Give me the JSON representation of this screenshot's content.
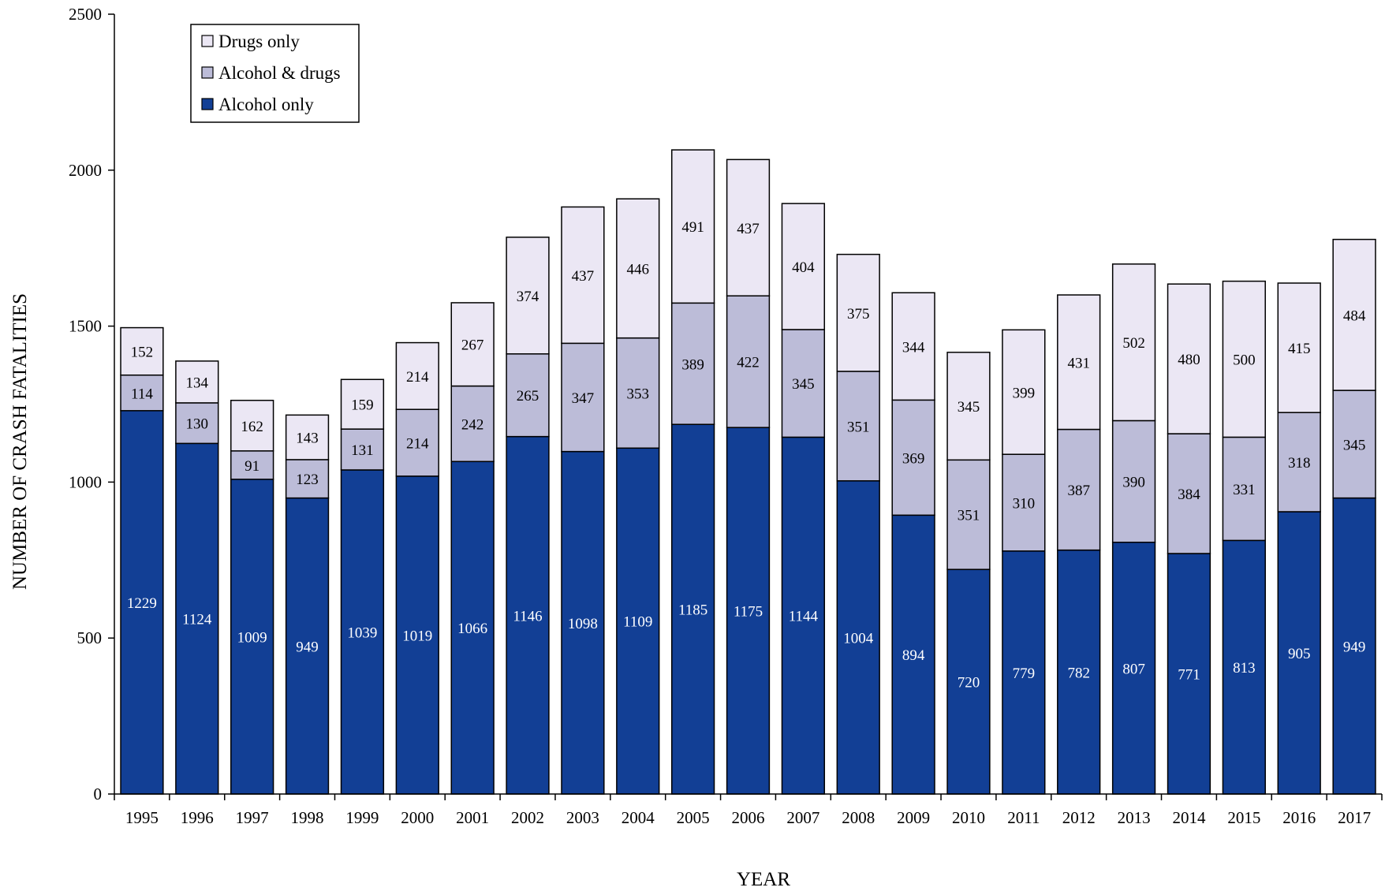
{
  "chart_data": {
    "type": "bar",
    "stacked": true,
    "xlabel": "YEAR",
    "ylabel": "NUMBER OF CRASH FATALITIES",
    "ylim": [
      0,
      2500
    ],
    "yticks": [
      "0",
      "500",
      "1000",
      "1500",
      "2000",
      "2500"
    ],
    "categories": [
      "1995",
      "1996",
      "1997",
      "1998",
      "1999",
      "2000",
      "2001",
      "2002",
      "2003",
      "2004",
      "2005",
      "2006",
      "2007",
      "2008",
      "2009",
      "2010",
      "2011",
      "2012",
      "2013",
      "2014",
      "2015",
      "2016",
      "2017"
    ],
    "series": [
      {
        "name": "Alcohol only",
        "color": "#123f95",
        "label_color": "#ffffff",
        "values": [
          1229,
          1124,
          1009,
          949,
          1039,
          1019,
          1066,
          1146,
          1098,
          1109,
          1185,
          1175,
          1144,
          1004,
          894,
          720,
          779,
          782,
          807,
          771,
          813,
          905,
          949
        ]
      },
      {
        "name": "Alcohol & drugs",
        "color": "#bcbcd8",
        "label_color": "#000000",
        "values": [
          114,
          130,
          91,
          123,
          131,
          214,
          242,
          265,
          347,
          353,
          389,
          422,
          345,
          351,
          369,
          351,
          310,
          387,
          390,
          384,
          331,
          318,
          345
        ]
      },
      {
        "name": "Drugs only",
        "color": "#ebe7f4",
        "label_color": "#000000",
        "values": [
          152,
          134,
          162,
          143,
          159,
          214,
          267,
          374,
          437,
          446,
          491,
          437,
          404,
          375,
          344,
          345,
          399,
          431,
          502,
          480,
          500,
          415,
          484
        ]
      }
    ],
    "grid": false,
    "legend_position": "top-left",
    "legend_order": [
      "Drugs only",
      "Alcohol & drugs",
      "Alcohol only"
    ]
  }
}
